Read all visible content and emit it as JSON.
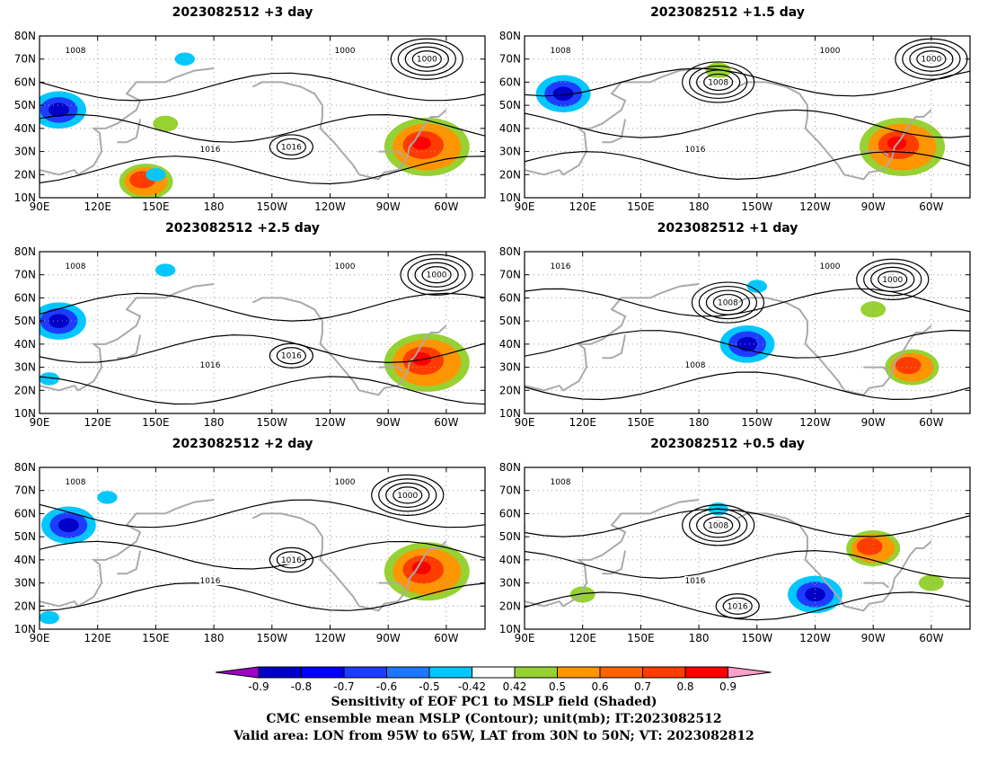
{
  "colors": {
    "neg": [
      "#a000c8",
      "#0000c8",
      "#0000ff",
      "#1e3cff",
      "#1e78ff",
      "#00c8ff"
    ],
    "neutral": "#ffffff",
    "pos": [
      "#96d232",
      "#ff9600",
      "#ff6400",
      "#ff3c00",
      "#ff0000",
      "#ffa0c8"
    ],
    "contour": "#000000",
    "coast": "#aaaaaa"
  },
  "panels": [
    {
      "title": "2023082512 +3 day",
      "contour_labels": [
        "1008",
        "1016",
        "1000"
      ],
      "negative_patches": [
        [
          "100E",
          "48N",
          "strong"
        ],
        [
          "150E",
          "20N",
          "weak"
        ],
        [
          "165E",
          "70N",
          "weak"
        ]
      ],
      "positive_patches": [
        [
          "70W",
          "32N",
          "strong"
        ],
        [
          "155E",
          "42N",
          "weak"
        ],
        [
          "145E",
          "17N",
          "medium"
        ]
      ],
      "pressure_centers": [
        [
          "1000",
          "70W",
          "70N",
          "low"
        ],
        [
          "1016",
          "140W",
          "32N",
          "high"
        ]
      ]
    },
    {
      "title": "2023082512 +1.5 day",
      "contour_labels": [
        "1008",
        "1016",
        "1000"
      ],
      "negative_patches": [
        [
          "110E",
          "55N",
          "strong"
        ]
      ],
      "positive_patches": [
        [
          "75W",
          "32N",
          "strong"
        ],
        [
          "170W",
          "65N",
          "weak"
        ]
      ],
      "pressure_centers": [
        [
          "1000",
          "60W",
          "70N",
          "low"
        ],
        [
          "1008",
          "170W",
          "60N",
          "low"
        ]
      ]
    },
    {
      "title": "2023082512 +2.5 day",
      "contour_labels": [
        "1008",
        "1016",
        "1000"
      ],
      "negative_patches": [
        [
          "100E",
          "50N",
          "strong"
        ],
        [
          "155E",
          "72N",
          "weak"
        ],
        [
          "95E",
          "25N",
          "weak"
        ]
      ],
      "positive_patches": [
        [
          "70W",
          "32N",
          "strong"
        ]
      ],
      "pressure_centers": [
        [
          "1000",
          "65W",
          "70N",
          "low"
        ],
        [
          "1016",
          "140W",
          "35N",
          "high"
        ]
      ]
    },
    {
      "title": "2023082512 +1 day",
      "contour_labels": [
        "1016",
        "1008",
        "1000"
      ],
      "negative_patches": [
        [
          "155W",
          "40N",
          "strong"
        ],
        [
          "150W",
          "65N",
          "weak"
        ]
      ],
      "positive_patches": [
        [
          "70W",
          "30N",
          "medium"
        ],
        [
          "90W",
          "55N",
          "weak"
        ]
      ],
      "pressure_centers": [
        [
          "1008",
          "165W",
          "58N",
          "low"
        ],
        [
          "1000",
          "80W",
          "68N",
          "low"
        ]
      ]
    },
    {
      "title": "2023082512 +2 day",
      "contour_labels": [
        "1008",
        "1016",
        "1000"
      ],
      "negative_patches": [
        [
          "105E",
          "55N",
          "strong"
        ],
        [
          "125E",
          "67N",
          "weak"
        ],
        [
          "95E",
          "15N",
          "weak"
        ]
      ],
      "positive_patches": [
        [
          "70W",
          "35N",
          "strong"
        ]
      ],
      "pressure_centers": [
        [
          "1000",
          "80W",
          "68N",
          "low"
        ],
        [
          "1016",
          "140W",
          "40N",
          "high"
        ]
      ]
    },
    {
      "title": "2023082512 +0.5 day",
      "contour_labels": [
        "1008",
        "1016"
      ],
      "negative_patches": [
        [
          "120W",
          "25N",
          "strong"
        ],
        [
          "170W",
          "62N",
          "weak"
        ]
      ],
      "positive_patches": [
        [
          "90W",
          "45N",
          "medium"
        ],
        [
          "120E",
          "25N",
          "weak"
        ],
        [
          "60W",
          "30N",
          "weak"
        ]
      ],
      "pressure_centers": [
        [
          "1008",
          "170W",
          "55N",
          "low"
        ],
        [
          "1016",
          "160W",
          "20N",
          "high"
        ]
      ]
    }
  ],
  "x_ticks": [
    "90E",
    "120E",
    "150E",
    "180",
    "150W",
    "120W",
    "90W",
    "60W"
  ],
  "y_ticks": [
    "80N",
    "70N",
    "60N",
    "50N",
    "40N",
    "30N",
    "20N",
    "10N"
  ],
  "colorbar": {
    "labels": [
      "-0.9",
      "-0.8",
      "-0.7",
      "-0.6",
      "-0.5",
      "-0.42",
      "0.42",
      "0.5",
      "0.6",
      "0.7",
      "0.8",
      "0.9"
    ]
  },
  "caption": [
    "Sensitivity of EOF PC1 to MSLP field (Shaded)",
    "CMC ensemble mean MSLP (Contour); unit(mb); IT:2023082512",
    "Valid area: LON from 95W to 65W, LAT from 30N to 50N; VT: 2023082812"
  ]
}
